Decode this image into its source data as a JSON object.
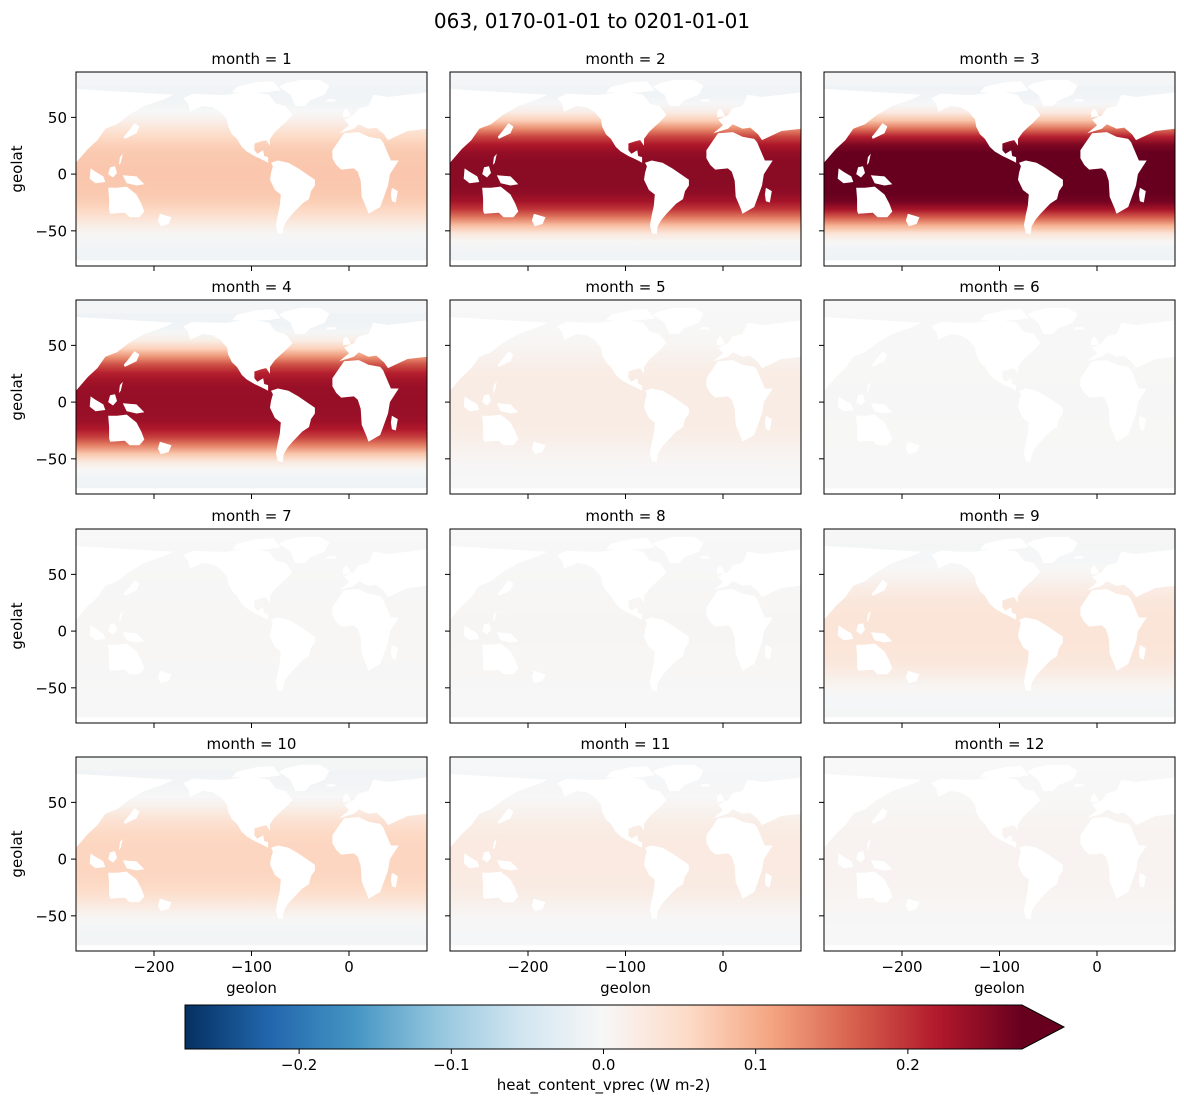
{
  "chart_data": {
    "type": "heatmap",
    "title": "063, 0170-01-01 to 0201-01-01",
    "xlabel": "geolon",
    "ylabel": "geolat",
    "xlim": [
      -280,
      80
    ],
    "ylim": [
      -81,
      90
    ],
    "x_ticks": [
      -200,
      -100,
      0
    ],
    "x_tick_labels": [
      "−200",
      "−100",
      "0"
    ],
    "y_ticks": [
      50,
      0,
      -50
    ],
    "y_tick_labels": [
      "50",
      "0",
      "−50"
    ],
    "grid": false,
    "colormap": "RdBu_r",
    "colormap_stops": [
      "#053061",
      "#2166ac",
      "#4393c3",
      "#92c5de",
      "#d1e5f0",
      "#f7f7f7",
      "#fddbc7",
      "#f4a582",
      "#d6604d",
      "#b2182b",
      "#67001f"
    ],
    "land_color": "#ffffff",
    "colorbar": {
      "label": "heat_content_vprec (W m-2)",
      "vmin": -0.275,
      "vmax": 0.275,
      "extend": "max",
      "ticks": [
        -0.2,
        -0.1,
        0.0,
        0.1,
        0.2
      ],
      "tick_labels": [
        "−0.2",
        "−0.1",
        "0.0",
        "0.1",
        "0.2"
      ]
    },
    "panels": [
      {
        "label": "month = 1",
        "month": 1,
        "tropical": 0.075,
        "polar": -0.01
      },
      {
        "label": "month = 2",
        "month": 2,
        "tropical": 0.25,
        "polar": -0.01
      },
      {
        "label": "month = 3",
        "month": 3,
        "tropical": 0.29,
        "polar": -0.012
      },
      {
        "label": "month = 4",
        "month": 4,
        "tropical": 0.24,
        "polar": -0.012
      },
      {
        "label": "month = 5",
        "month": 5,
        "tropical": 0.022,
        "polar": 0.0
      },
      {
        "label": "month = 6",
        "month": 6,
        "tropical": 0.001,
        "polar": 0.0
      },
      {
        "label": "month = 7",
        "month": 7,
        "tropical": 0.002,
        "polar": 0.0
      },
      {
        "label": "month = 8",
        "month": 8,
        "tropical": 0.003,
        "polar": 0.0
      },
      {
        "label": "month = 9",
        "month": 9,
        "tropical": 0.035,
        "polar": -0.004
      },
      {
        "label": "month = 10",
        "month": 10,
        "tropical": 0.06,
        "polar": -0.008
      },
      {
        "label": "month = 11",
        "month": 11,
        "tropical": 0.025,
        "polar": -0.003
      },
      {
        "label": "month = 12",
        "month": 12,
        "tropical": 0.008,
        "polar": 0.0
      }
    ]
  }
}
